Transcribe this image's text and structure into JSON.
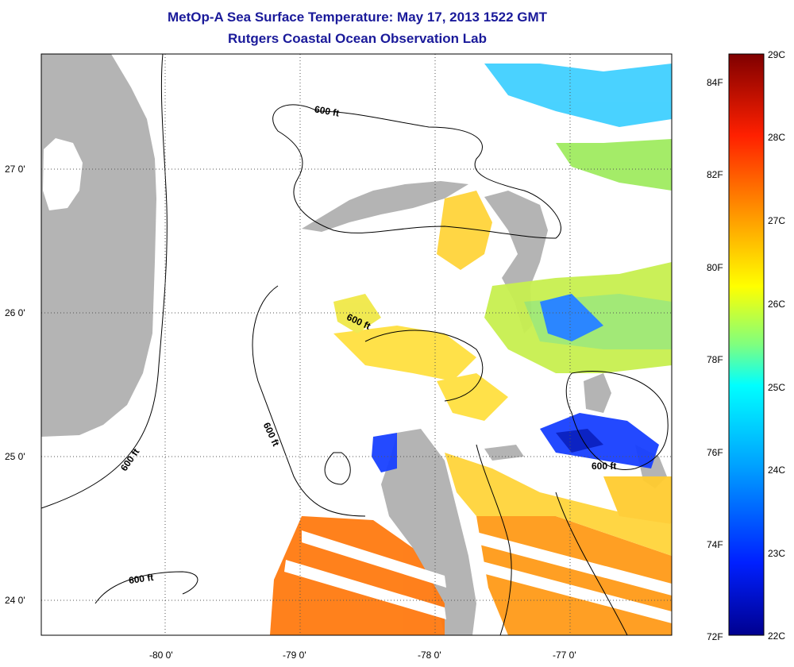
{
  "title": "MetOp-A Sea Surface Temperature:  May 17, 2013 1522 GMT",
  "subtitle": "Rutgers Coastal Ocean Observation Lab",
  "map": {
    "lat_ticks": [
      "27 0'",
      "26 0'",
      "25 0'",
      "24 0'"
    ],
    "lon_ticks": [
      "-80 0'",
      "-79 0'",
      "-78 0'",
      "-77 0'"
    ],
    "contour_labels": [
      "600 ft",
      "600 ft",
      "600 ft",
      "600 ft",
      "600 ft",
      "600 ft"
    ],
    "colors": {
      "land": "#b4b4b4",
      "no_data": "#ffffff",
      "contour": "#000000"
    }
  },
  "colorbar": {
    "celsius_ticks": [
      "29C",
      "28C",
      "27C",
      "26C",
      "25C",
      "24C",
      "23C",
      "22C"
    ],
    "fahrenheit_ticks": [
      "84F",
      "82F",
      "80F",
      "78F",
      "76F",
      "74F",
      "72F"
    ],
    "colors": [
      "#7f0000",
      "#ff0000",
      "#ff8c00",
      "#ffff00",
      "#7fff7f",
      "#00ffff",
      "#0080ff",
      "#00008f"
    ]
  }
}
